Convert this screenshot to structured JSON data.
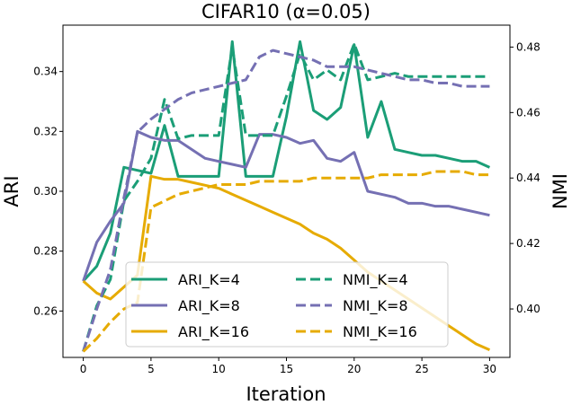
{
  "chart_data": {
    "type": "line",
    "title": "CIFAR10 (α=0.05)",
    "xlabel": "Iteration",
    "ylabel_left": "ARI",
    "ylabel_right": "NMI",
    "x": [
      0,
      1,
      2,
      3,
      4,
      5,
      6,
      7,
      8,
      9,
      10,
      11,
      12,
      13,
      14,
      15,
      16,
      17,
      18,
      19,
      20,
      21,
      22,
      23,
      24,
      25,
      26,
      27,
      28,
      29,
      30
    ],
    "xlim": [
      -1.5,
      31.5
    ],
    "xticks": [
      0,
      5,
      10,
      15,
      20,
      25,
      30
    ],
    "ylim_left": [
      0.2445,
      0.3555
    ],
    "yticks_left": [
      0.26,
      0.28,
      0.3,
      0.32,
      0.34
    ],
    "ytick_labels_left": [
      "0.26",
      "0.28",
      "0.30",
      "0.32",
      "0.34"
    ],
    "ylim_right": [
      0.3852,
      0.4867
    ],
    "yticks_right": [
      0.4,
      0.42,
      0.44,
      0.46,
      0.48
    ],
    "ytick_labels_right": [
      "0.40",
      "0.42",
      "0.44",
      "0.46",
      "0.48"
    ],
    "grid": false,
    "legend_position": "lower-center",
    "legend_columns": 2,
    "series": [
      {
        "name": "ARI_K=4",
        "axis": "left",
        "style": "solid",
        "color": "#1b9e77",
        "values": [
          0.27,
          0.275,
          0.286,
          0.308,
          0.307,
          0.306,
          0.322,
          0.305,
          0.305,
          0.305,
          0.305,
          0.35,
          0.305,
          0.305,
          0.305,
          0.325,
          0.35,
          0.327,
          0.324,
          0.328,
          0.349,
          0.318,
          0.33,
          0.314,
          0.313,
          0.312,
          0.312,
          0.311,
          0.31,
          0.31,
          0.308
        ]
      },
      {
        "name": "ARI_K=8",
        "axis": "left",
        "style": "solid",
        "color": "#7570b3",
        "values": [
          0.27,
          0.283,
          0.29,
          0.296,
          0.32,
          0.318,
          0.317,
          0.317,
          0.314,
          0.311,
          0.31,
          0.309,
          0.308,
          0.319,
          0.319,
          0.318,
          0.316,
          0.317,
          0.311,
          0.31,
          0.313,
          0.3,
          0.299,
          0.298,
          0.296,
          0.296,
          0.295,
          0.295,
          0.294,
          0.293,
          0.292
        ]
      },
      {
        "name": "ARI_K=16",
        "axis": "left",
        "style": "solid",
        "color": "#e6ab02",
        "values": [
          0.27,
          0.266,
          0.264,
          0.268,
          0.272,
          0.305,
          0.304,
          0.304,
          0.303,
          0.302,
          0.301,
          0.299,
          0.297,
          0.295,
          0.293,
          0.291,
          0.289,
          0.286,
          0.284,
          0.281,
          0.277,
          0.273,
          0.27,
          0.267,
          0.264,
          0.261,
          0.258,
          0.255,
          0.252,
          0.249,
          0.247
        ]
      },
      {
        "name": "NMI_K=4",
        "axis": "right",
        "style": "dashed",
        "color": "#1b9e77",
        "values": [
          0.387,
          0.401,
          0.409,
          0.433,
          0.439,
          0.446,
          0.464,
          0.452,
          0.453,
          0.453,
          0.453,
          0.48,
          0.453,
          0.453,
          0.453,
          0.465,
          0.478,
          0.47,
          0.473,
          0.47,
          0.481,
          0.47,
          0.471,
          0.472,
          0.471,
          0.471,
          0.471,
          0.471,
          0.471,
          0.471,
          0.471
        ]
      },
      {
        "name": "NMI_K=8",
        "axis": "right",
        "style": "dashed",
        "color": "#7570b3",
        "values": [
          0.387,
          0.4,
          0.412,
          0.434,
          0.454,
          0.458,
          0.461,
          0.464,
          0.466,
          0.467,
          0.468,
          0.469,
          0.47,
          0.477,
          0.479,
          0.478,
          0.477,
          0.476,
          0.474,
          0.474,
          0.474,
          0.473,
          0.472,
          0.471,
          0.47,
          0.47,
          0.469,
          0.469,
          0.468,
          0.468,
          0.468
        ]
      },
      {
        "name": "NMI_K=16",
        "axis": "right",
        "style": "dashed",
        "color": "#e6ab02",
        "values": [
          0.387,
          0.391,
          0.396,
          0.4,
          0.402,
          0.431,
          0.433,
          0.435,
          0.436,
          0.437,
          0.438,
          0.438,
          0.438,
          0.439,
          0.439,
          0.439,
          0.439,
          0.44,
          0.44,
          0.44,
          0.44,
          0.44,
          0.441,
          0.441,
          0.441,
          0.441,
          0.442,
          0.442,
          0.442,
          0.441,
          0.441
        ]
      }
    ]
  }
}
